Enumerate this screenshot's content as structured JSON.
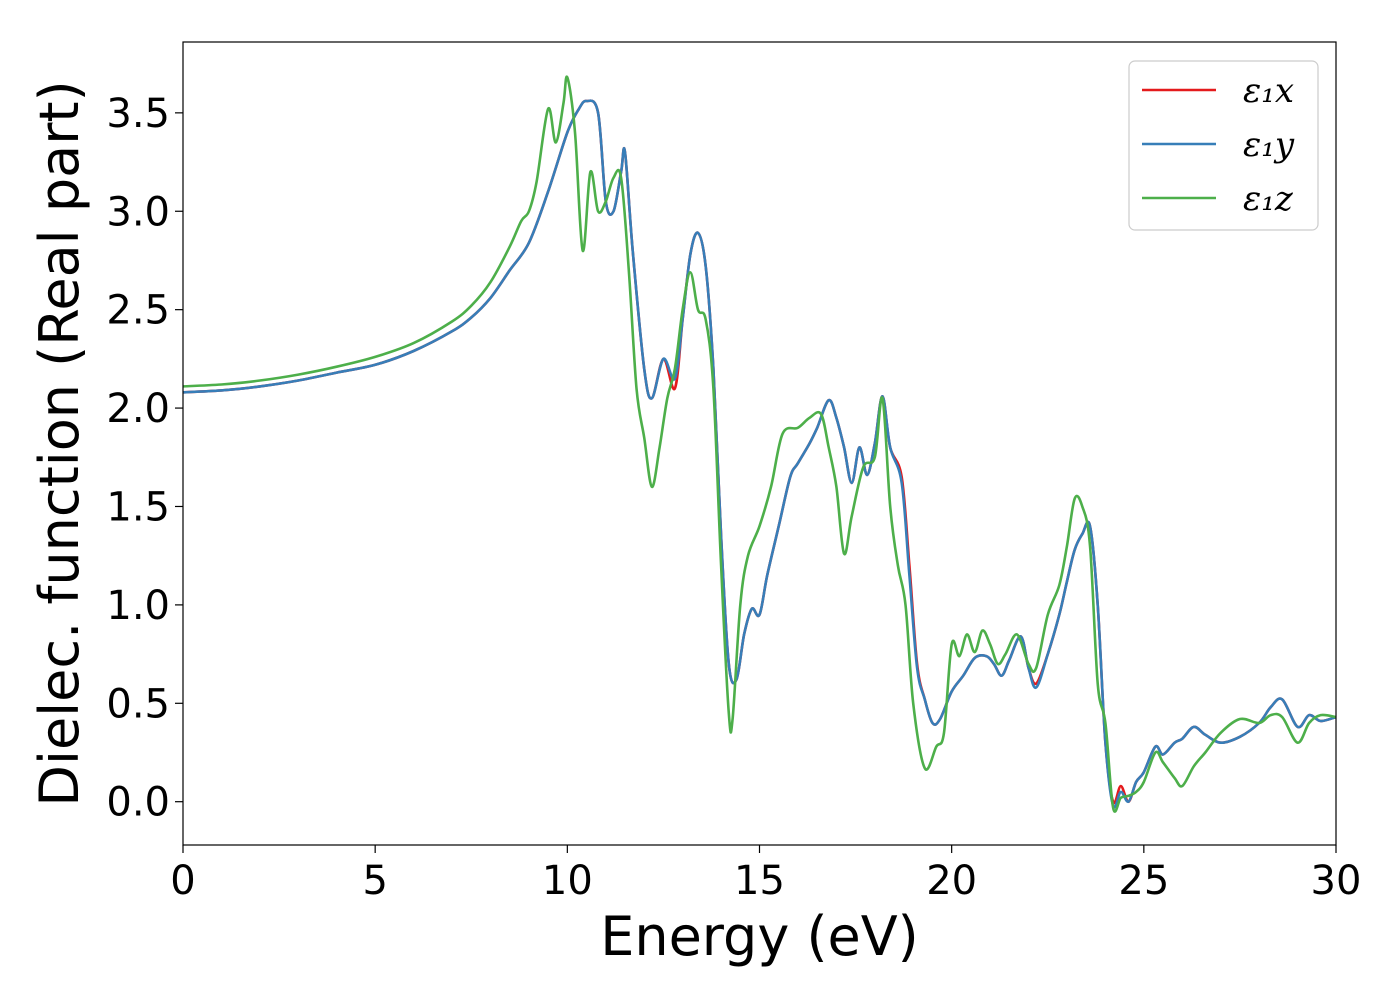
{
  "chart_data": {
    "type": "line",
    "title": "",
    "xlabel": "Energy (eV)",
    "ylabel": "Dielec. function (Real part)",
    "xlim": [
      0,
      30
    ],
    "ylim": [
      -0.22,
      3.86
    ],
    "xticks": [
      0,
      5,
      10,
      15,
      20,
      25,
      30
    ],
    "yticks": [
      0.0,
      0.5,
      1.0,
      1.5,
      2.0,
      2.5,
      3.0,
      3.5
    ],
    "xtick_labels": [
      "0",
      "5",
      "10",
      "15",
      "20",
      "25",
      "30"
    ],
    "ytick_labels": [
      "0.0",
      "0.5",
      "1.0",
      "1.5",
      "2.0",
      "2.5",
      "3.0",
      "3.5"
    ],
    "grid": false,
    "legend_position": "upper right",
    "series": [
      {
        "name": "ε₁x",
        "color": "#e41a1c",
        "x": [
          0,
          1,
          2,
          3,
          4,
          5,
          6,
          7,
          7.5,
          8,
          8.5,
          9,
          9.5,
          10,
          10.3,
          10.5,
          10.8,
          11.0,
          11.2,
          11.4,
          11.5,
          11.7,
          12.0,
          12.2,
          12.5,
          12.8,
          13.0,
          13.2,
          13.4,
          13.6,
          13.8,
          14.0,
          14.2,
          14.4,
          14.6,
          14.8,
          15.0,
          15.2,
          15.5,
          15.8,
          16.0,
          16.3,
          16.5,
          16.8,
          17.0,
          17.2,
          17.4,
          17.6,
          17.8,
          18.0,
          18.2,
          18.4,
          18.7,
          18.9,
          19.1,
          19.3,
          19.5,
          19.7,
          20.0,
          20.3,
          20.6,
          20.9,
          21.1,
          21.3,
          21.5,
          21.8,
          22.0,
          22.2,
          22.5,
          22.8,
          23.0,
          23.2,
          23.4,
          23.6,
          23.8,
          24.0,
          24.2,
          24.4,
          24.6,
          24.8,
          25.0,
          25.3,
          25.5,
          25.8,
          26.0,
          26.3,
          26.6,
          27.0,
          27.5,
          28.0,
          28.3,
          28.6,
          29.0,
          29.3,
          29.6,
          30.0
        ],
        "y": [
          2.08,
          2.09,
          2.11,
          2.14,
          2.18,
          2.22,
          2.29,
          2.39,
          2.46,
          2.56,
          2.7,
          2.84,
          3.1,
          3.4,
          3.52,
          3.56,
          3.5,
          3.05,
          3.0,
          3.2,
          3.3,
          2.8,
          2.2,
          2.05,
          2.25,
          2.1,
          2.45,
          2.78,
          2.89,
          2.72,
          2.2,
          1.35,
          0.7,
          0.62,
          0.85,
          0.98,
          0.95,
          1.15,
          1.4,
          1.65,
          1.72,
          1.82,
          1.9,
          2.04,
          1.95,
          1.8,
          1.62,
          1.8,
          1.66,
          1.82,
          2.06,
          1.8,
          1.65,
          1.2,
          0.7,
          0.52,
          0.4,
          0.42,
          0.56,
          0.64,
          0.73,
          0.74,
          0.7,
          0.64,
          0.72,
          0.84,
          0.68,
          0.6,
          0.75,
          0.95,
          1.12,
          1.28,
          1.36,
          1.4,
          1.0,
          0.3,
          0.0,
          0.08,
          0.0,
          0.1,
          0.15,
          0.28,
          0.24,
          0.3,
          0.32,
          0.38,
          0.34,
          0.3,
          0.33,
          0.4,
          0.48,
          0.52,
          0.38,
          0.44,
          0.41,
          0.43
        ]
      },
      {
        "name": "ε₁y",
        "color": "#377eb8",
        "x": [
          0,
          1,
          2,
          3,
          4,
          5,
          6,
          7,
          7.5,
          8,
          8.5,
          9,
          9.5,
          10,
          10.3,
          10.5,
          10.8,
          11.0,
          11.2,
          11.4,
          11.5,
          11.7,
          12.0,
          12.2,
          12.5,
          12.8,
          13.0,
          13.2,
          13.4,
          13.6,
          13.8,
          14.0,
          14.2,
          14.4,
          14.6,
          14.8,
          15.0,
          15.2,
          15.5,
          15.8,
          16.0,
          16.3,
          16.5,
          16.8,
          17.0,
          17.2,
          17.4,
          17.6,
          17.8,
          18.0,
          18.2,
          18.4,
          18.7,
          18.9,
          19.1,
          19.3,
          19.5,
          19.7,
          20.0,
          20.3,
          20.6,
          20.9,
          21.1,
          21.3,
          21.5,
          21.8,
          22.0,
          22.2,
          22.5,
          22.8,
          23.0,
          23.2,
          23.4,
          23.6,
          23.8,
          24.0,
          24.2,
          24.4,
          24.6,
          24.8,
          25.0,
          25.3,
          25.5,
          25.8,
          26.0,
          26.3,
          26.6,
          27.0,
          27.5,
          28.0,
          28.3,
          28.6,
          29.0,
          29.3,
          29.6,
          30.0
        ],
        "y": [
          2.08,
          2.09,
          2.11,
          2.14,
          2.18,
          2.22,
          2.29,
          2.39,
          2.46,
          2.56,
          2.7,
          2.84,
          3.1,
          3.4,
          3.52,
          3.56,
          3.5,
          3.05,
          3.0,
          3.2,
          3.3,
          2.8,
          2.2,
          2.05,
          2.25,
          2.15,
          2.45,
          2.78,
          2.89,
          2.72,
          2.2,
          1.35,
          0.7,
          0.62,
          0.85,
          0.98,
          0.95,
          1.15,
          1.4,
          1.65,
          1.72,
          1.82,
          1.9,
          2.04,
          1.95,
          1.8,
          1.62,
          1.8,
          1.66,
          1.82,
          2.06,
          1.8,
          1.62,
          1.15,
          0.68,
          0.52,
          0.4,
          0.42,
          0.56,
          0.64,
          0.73,
          0.74,
          0.7,
          0.64,
          0.72,
          0.84,
          0.68,
          0.58,
          0.75,
          0.95,
          1.12,
          1.28,
          1.36,
          1.4,
          1.0,
          0.3,
          -0.02,
          0.05,
          0.0,
          0.1,
          0.15,
          0.28,
          0.24,
          0.3,
          0.32,
          0.38,
          0.34,
          0.3,
          0.33,
          0.4,
          0.48,
          0.52,
          0.38,
          0.44,
          0.41,
          0.43
        ]
      },
      {
        "name": "ε₁z",
        "color": "#4daf4a",
        "x": [
          0,
          1,
          2,
          3,
          4,
          5,
          6,
          7,
          7.5,
          8,
          8.5,
          8.8,
          9.0,
          9.2,
          9.5,
          9.7,
          9.9,
          10.0,
          10.2,
          10.4,
          10.6,
          10.8,
          11.0,
          11.2,
          11.4,
          11.6,
          11.8,
          12.0,
          12.2,
          12.4,
          12.6,
          12.8,
          13.0,
          13.2,
          13.4,
          13.6,
          13.8,
          14.0,
          14.2,
          14.3,
          14.5,
          14.7,
          15.0,
          15.3,
          15.6,
          16.0,
          16.3,
          16.6,
          16.8,
          17.0,
          17.2,
          17.4,
          17.7,
          18.0,
          18.2,
          18.4,
          18.6,
          18.8,
          19.0,
          19.3,
          19.6,
          19.8,
          20.0,
          20.2,
          20.4,
          20.6,
          20.8,
          21.0,
          21.2,
          21.4,
          21.7,
          22.0,
          22.2,
          22.5,
          22.8,
          23.0,
          23.2,
          23.4,
          23.6,
          23.8,
          24.0,
          24.2,
          24.4,
          24.6,
          24.8,
          25.0,
          25.3,
          25.5,
          25.8,
          26.0,
          26.3,
          26.6,
          27.0,
          27.5,
          28.0,
          28.3,
          28.6,
          29.0,
          29.3,
          29.6,
          30.0
        ],
        "y": [
          2.11,
          2.12,
          2.14,
          2.17,
          2.21,
          2.26,
          2.33,
          2.44,
          2.52,
          2.64,
          2.82,
          2.95,
          3.0,
          3.15,
          3.52,
          3.35,
          3.55,
          3.68,
          3.4,
          2.8,
          3.2,
          3.0,
          3.05,
          3.17,
          3.17,
          2.7,
          2.1,
          1.85,
          1.6,
          1.8,
          2.05,
          2.2,
          2.5,
          2.69,
          2.5,
          2.45,
          2.1,
          1.2,
          0.45,
          0.42,
          1.0,
          1.25,
          1.4,
          1.6,
          1.87,
          1.9,
          1.95,
          1.97,
          1.8,
          1.6,
          1.26,
          1.45,
          1.7,
          1.75,
          2.05,
          1.5,
          1.2,
          1.0,
          0.5,
          0.17,
          0.28,
          0.35,
          0.8,
          0.74,
          0.85,
          0.76,
          0.87,
          0.8,
          0.7,
          0.75,
          0.85,
          0.7,
          0.68,
          0.95,
          1.1,
          1.3,
          1.54,
          1.5,
          1.3,
          0.6,
          0.4,
          -0.03,
          0.02,
          0.03,
          0.05,
          0.1,
          0.25,
          0.2,
          0.12,
          0.08,
          0.18,
          0.25,
          0.35,
          0.42,
          0.4,
          0.44,
          0.43,
          0.3,
          0.4,
          0.44,
          0.43
        ]
      }
    ]
  }
}
